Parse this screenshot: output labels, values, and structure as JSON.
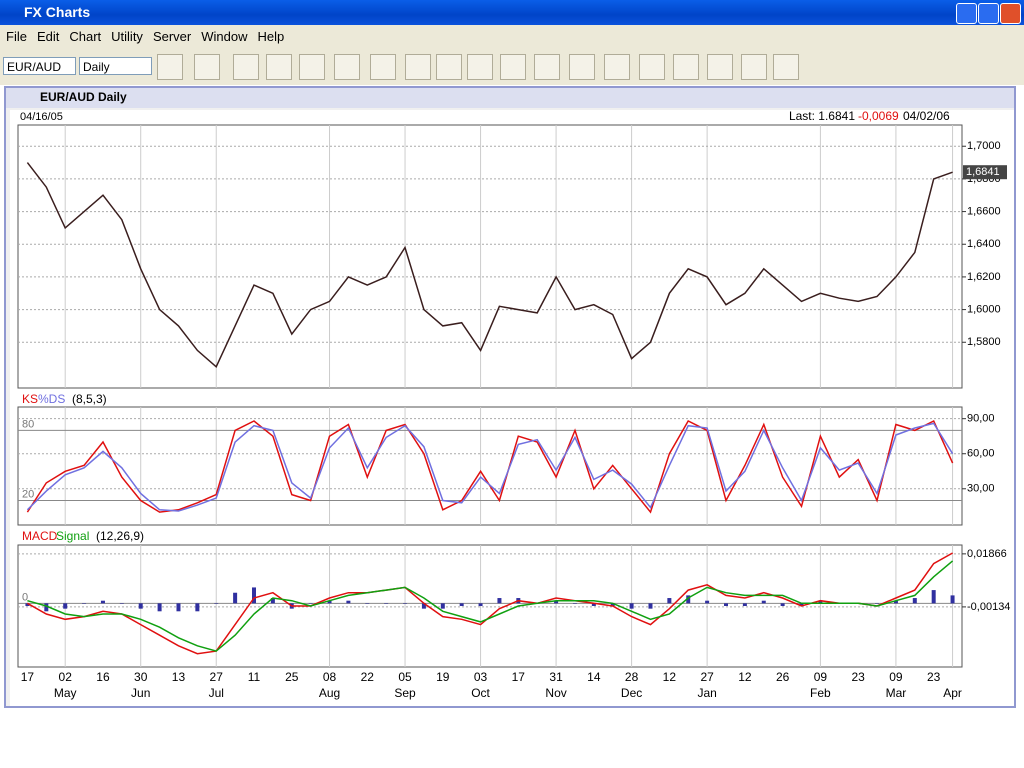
{
  "window": {
    "title": "FX Charts"
  },
  "menu": [
    "File",
    "Edit",
    "Chart",
    "Utility",
    "Server",
    "Window",
    "Help"
  ],
  "toolbar": {
    "symbol": "EUR/AUD",
    "period": "Daily"
  },
  "chart_window": {
    "title": "EUR/AUD Daily",
    "start_date": "04/16/05",
    "last_label": "Last: 1.6841",
    "change": "-0,0069",
    "end_date": "04/02/06"
  },
  "chart_data": [
    {
      "type": "line",
      "color": "#3a1e1e",
      "values": [
        1.69,
        1.675,
        1.65,
        1.66,
        1.67,
        1.655,
        1.625,
        1.6,
        1.59,
        1.575,
        1.565,
        1.59,
        1.615,
        1.61,
        1.585,
        1.6,
        1.605,
        1.62,
        1.615,
        1.62,
        1.638,
        1.6,
        1.59,
        1.592,
        1.575,
        1.602,
        1.6,
        1.598,
        1.62,
        1.6,
        1.603,
        1.597,
        1.57,
        1.58,
        1.61,
        1.625,
        1.62,
        1.603,
        1.61,
        1.625,
        1.615,
        1.605,
        1.61,
        1.607,
        1.605,
        1.608,
        1.62,
        1.635,
        1.68,
        1.6841
      ],
      "ylim": [
        1.552,
        1.713
      ],
      "yticks": [
        {
          "value": 1.58,
          "label": "1,5800"
        },
        {
          "value": 1.6,
          "label": "1,6000"
        },
        {
          "value": 1.62,
          "label": "1,6200"
        },
        {
          "value": 1.64,
          "label": "1,6400"
        },
        {
          "value": 1.66,
          "label": "1,6600"
        },
        {
          "value": 1.68,
          "label": "1,6800"
        },
        {
          "value": 1.7,
          "label": "1,7000"
        }
      ],
      "last_tag": {
        "value": 1.6841,
        "label": "1,6841"
      },
      "grid": true
    },
    {
      "type": "line",
      "params": "(8,5,3)",
      "series": [
        {
          "name": "KS",
          "color": "#e01010",
          "values": [
            10,
            35,
            45,
            50,
            70,
            40,
            20,
            10,
            12,
            18,
            25,
            80,
            88,
            75,
            25,
            20,
            75,
            85,
            40,
            80,
            85,
            60,
            12,
            20,
            45,
            20,
            75,
            70,
            40,
            80,
            30,
            50,
            30,
            10,
            60,
            88,
            80,
            20,
            50,
            85,
            40,
            15,
            75,
            40,
            55,
            20,
            85,
            80,
            88,
            52
          ]
        },
        {
          "name": "%DS",
          "color": "#7070e0",
          "values": [
            12,
            28,
            42,
            48,
            62,
            48,
            26,
            12,
            11,
            16,
            22,
            70,
            84,
            80,
            35,
            22,
            65,
            82,
            48,
            74,
            84,
            66,
            20,
            18,
            40,
            26,
            68,
            72,
            46,
            74,
            38,
            46,
            34,
            14,
            50,
            84,
            82,
            28,
            45,
            80,
            48,
            20,
            65,
            46,
            52,
            26,
            76,
            82,
            86,
            60
          ]
        }
      ],
      "levels": [
        80,
        20
      ],
      "ylim": [
        -1,
        100
      ],
      "yticks": [
        {
          "value": 30,
          "label": "30,00"
        },
        {
          "value": 60,
          "label": "60,00"
        },
        {
          "value": 90,
          "label": "90,00"
        }
      ],
      "grid": true
    },
    {
      "type": "line",
      "params": "(12,26,9)",
      "series": [
        {
          "name": "MACD",
          "color": "#e01010",
          "values": [
            0.0,
            -0.004,
            -0.006,
            -0.005,
            -0.003,
            -0.004,
            -0.008,
            -0.012,
            -0.016,
            -0.019,
            -0.018,
            -0.008,
            0.002,
            0.004,
            -0.001,
            -0.001,
            0.002,
            0.004,
            0.004,
            0.005,
            0.006,
            0.0,
            -0.005,
            -0.006,
            -0.008,
            -0.002,
            0.001,
            0.0,
            0.002,
            0.001,
            0.0,
            -0.001,
            -0.005,
            -0.008,
            -0.002,
            0.005,
            0.007,
            0.003,
            0.002,
            0.004,
            0.002,
            -0.001,
            0.001,
            0.0,
            0.0,
            -0.001,
            0.002,
            0.005,
            0.015,
            0.019
          ]
        },
        {
          "name": "Signal",
          "color": "#10a010",
          "values": [
            0.001,
            -0.001,
            -0.004,
            -0.005,
            -0.004,
            -0.004,
            -0.006,
            -0.009,
            -0.013,
            -0.016,
            -0.018,
            -0.012,
            -0.004,
            0.002,
            0.001,
            -0.001,
            0.001,
            0.003,
            0.004,
            0.005,
            0.006,
            0.002,
            -0.003,
            -0.005,
            -0.007,
            -0.004,
            -0.001,
            0.0,
            0.001,
            0.001,
            0.001,
            0.0,
            -0.003,
            -0.006,
            -0.004,
            0.002,
            0.006,
            0.004,
            0.003,
            0.003,
            0.003,
            0.0,
            0.0,
            0.0,
            0.0,
            -0.001,
            0.001,
            0.003,
            0.01,
            0.016
          ]
        }
      ],
      "histogram": {
        "color": "#3030a0",
        "values": [
          -0.001,
          -0.003,
          -0.002,
          0,
          0.001,
          0,
          -0.002,
          -0.003,
          -0.003,
          -0.003,
          0,
          0.004,
          0.006,
          0.002,
          -0.002,
          0,
          0.001,
          0.001,
          0,
          0,
          0,
          -0.002,
          -0.002,
          -0.001,
          -0.001,
          0.002,
          0.002,
          0,
          0.001,
          0,
          -0.001,
          -0.001,
          -0.002,
          -0.002,
          0.002,
          0.003,
          0.001,
          -0.001,
          -0.001,
          0.001,
          -0.001,
          -0.001,
          0.001,
          0,
          0,
          0,
          0.001,
          0.002,
          0.005,
          0.003
        ]
      },
      "levels": [
        0
      ],
      "ylim": [
        -0.024,
        0.022
      ],
      "yticks": [
        {
          "value": -0.00134,
          "label": "-0,00134"
        },
        {
          "value": 0.01866,
          "label": "0,01866"
        }
      ],
      "grid": true,
      "categories": [
        "17",
        null,
        "02",
        null,
        "16",
        null,
        "30",
        null,
        "13",
        null,
        "27",
        null,
        "11",
        null,
        "25",
        null,
        "08",
        null,
        "22",
        null,
        "05",
        null,
        "19",
        null,
        "03",
        null,
        "17",
        null,
        "31",
        null,
        "14",
        null,
        "28",
        null,
        "12",
        null,
        "27",
        null,
        "12",
        null,
        "26",
        null,
        "09",
        null,
        "23",
        null,
        "09",
        null,
        "23",
        null
      ],
      "months": [
        null,
        null,
        "May",
        null,
        null,
        null,
        "Jun",
        null,
        null,
        null,
        "Jul",
        null,
        null,
        null,
        null,
        null,
        "Aug",
        null,
        null,
        null,
        "Sep",
        null,
        null,
        null,
        "Oct",
        null,
        null,
        null,
        "Nov",
        null,
        null,
        null,
        "Dec",
        null,
        null,
        null,
        "Jan",
        null,
        null,
        null,
        null,
        null,
        "Feb",
        null,
        null,
        null,
        "Mar",
        null,
        null,
        "Apr"
      ]
    }
  ]
}
